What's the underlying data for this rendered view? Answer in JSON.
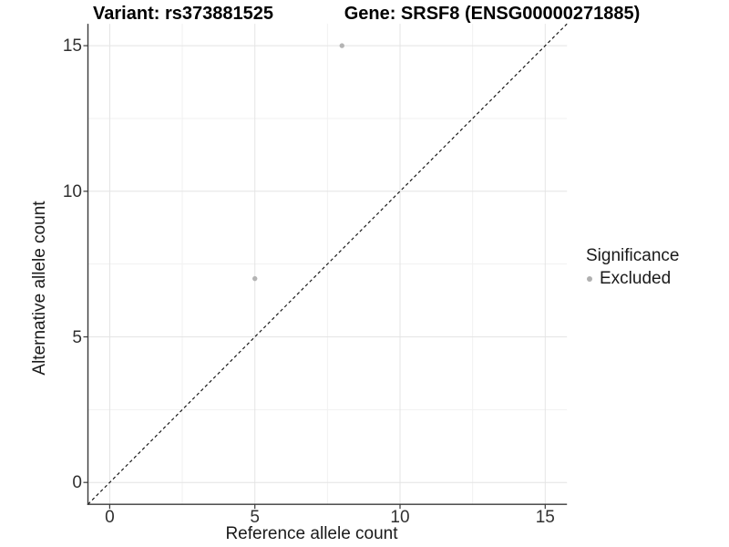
{
  "chart_data": {
    "type": "scatter",
    "title_left": "Variant: rs373881525",
    "title_right": "Gene: SRSF8 (ENSG00000271885)",
    "xlabel": "Reference allele count",
    "ylabel": "Alternative allele count",
    "xlim": [
      -0.75,
      15.75
    ],
    "ylim": [
      -0.75,
      15.75
    ],
    "x_ticks": [
      0,
      5,
      10,
      15
    ],
    "y_ticks": [
      0,
      5,
      10,
      15
    ],
    "x_minor_ticks": [
      2.5,
      7.5,
      12.5
    ],
    "y_minor_ticks": [
      2.5,
      7.5,
      12.5
    ],
    "grid": true,
    "points": [
      {
        "x": 8,
        "y": 15,
        "significance": "Excluded"
      },
      {
        "x": 5,
        "y": 7,
        "significance": "Excluded"
      }
    ],
    "identity_line": {
      "style": "dashed",
      "from": [
        -0.75,
        -0.75
      ],
      "to": [
        15.75,
        15.75
      ]
    },
    "legend": {
      "position": "right",
      "title": "Significance",
      "entries": [
        {
          "label": "Excluded",
          "color": "#b0b0b0"
        }
      ]
    },
    "colors": {
      "point": "#b4b4b4",
      "major_grid": "#e4e4e4",
      "minor_grid": "#f1f1f1",
      "axis_line": "#3a3a3a",
      "identity_line": "#1a1a1a",
      "tick_label": "#303030"
    }
  }
}
